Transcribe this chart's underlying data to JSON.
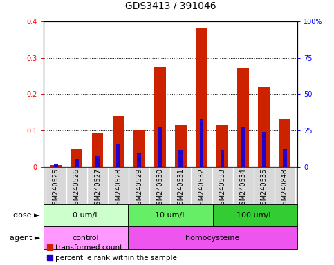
{
  "title": "GDS3413 / 391046",
  "samples": [
    "GSM240525",
    "GSM240526",
    "GSM240527",
    "GSM240528",
    "GSM240529",
    "GSM240530",
    "GSM240531",
    "GSM240532",
    "GSM240533",
    "GSM240534",
    "GSM240535",
    "GSM240848"
  ],
  "red_values": [
    0.005,
    0.05,
    0.095,
    0.14,
    0.1,
    0.275,
    0.115,
    0.38,
    0.115,
    0.27,
    0.22,
    0.13
  ],
  "blue_values": [
    2.5,
    5.0,
    7.5,
    16.0,
    10.0,
    27.5,
    11.5,
    32.5,
    11.5,
    27.5,
    24.0,
    12.5
  ],
  "ylim_left": [
    0,
    0.4
  ],
  "ylim_right": [
    0,
    100
  ],
  "yticks_left": [
    0.0,
    0.1,
    0.2,
    0.3,
    0.4
  ],
  "ytick_labels_left": [
    "0",
    "0.1",
    "0.2",
    "0.3",
    "0.4"
  ],
  "yticks_right": [
    0,
    25,
    50,
    75,
    100
  ],
  "ytick_labels_right": [
    "0",
    "25",
    "50",
    "75",
    "100%"
  ],
  "dose_groups": [
    {
      "label": "0 um/L",
      "start": 0,
      "end": 4
    },
    {
      "label": "10 um/L",
      "start": 4,
      "end": 8
    },
    {
      "label": "100 um/L",
      "start": 8,
      "end": 12
    }
  ],
  "dose_colors": [
    "#CCFFCC",
    "#66EE66",
    "#33CC33"
  ],
  "agent_groups": [
    {
      "label": "control",
      "start": 0,
      "end": 4
    },
    {
      "label": "homocysteine",
      "start": 4,
      "end": 12
    }
  ],
  "agent_colors": [
    "#FF99FF",
    "#EE55EE"
  ],
  "bar_width": 0.55,
  "red_color": "#CC2200",
  "blue_color": "#2200CC",
  "title_fontsize": 10,
  "tick_fontsize": 7,
  "label_fontsize": 8,
  "legend_fontsize": 7.5,
  "sample_area_facecolor": "#D8D8D8"
}
